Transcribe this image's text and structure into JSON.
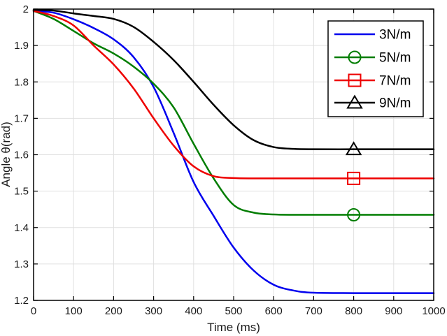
{
  "figure": {
    "background": "#ffffff",
    "grid_color": "#e0e0e0",
    "axis_color": "#000000"
  },
  "chart_data": {
    "type": "line",
    "title": "",
    "xlabel": "Time (ms)",
    "ylabel": "Angle θ(rad)",
    "xlim": [
      0,
      1000
    ],
    "ylim": [
      1.2,
      2
    ],
    "grid": true,
    "legend_position": "top-right",
    "xticks": {
      "values": [
        0,
        100,
        200,
        300,
        400,
        500,
        600,
        700,
        800,
        900,
        1000
      ],
      "labels": [
        "0",
        "100",
        "200",
        "300",
        "400",
        "500",
        "600",
        "700",
        "800",
        "900",
        "1000"
      ]
    },
    "yticks": {
      "values": [
        1.2,
        1.3,
        1.4,
        1.5,
        1.6,
        1.7,
        1.8,
        1.9,
        2
      ],
      "labels": [
        "1.2",
        "1.3",
        "1.4",
        "1.5",
        "1.6",
        "1.7",
        "1.8",
        "1.9",
        "2"
      ]
    },
    "series": [
      {
        "name": "3N/m",
        "color": "#0000ee",
        "marker": "none",
        "steady_state": 1.22,
        "x": [
          0,
          50,
          100,
          150,
          200,
          250,
          300,
          350,
          400,
          450,
          500,
          550,
          600,
          650,
          700,
          800,
          900,
          1000
        ],
        "y": [
          1.995,
          1.99,
          1.972,
          1.948,
          1.917,
          1.868,
          1.786,
          1.66,
          1.525,
          1.432,
          1.345,
          1.282,
          1.243,
          1.227,
          1.221,
          1.22,
          1.22,
          1.22
        ]
      },
      {
        "name": "5N/m",
        "color": "#007d00",
        "marker": "circle",
        "marker_point": [
          800,
          1.435
        ],
        "steady_state": 1.435,
        "x": [
          0,
          50,
          100,
          150,
          200,
          250,
          300,
          350,
          400,
          450,
          500,
          550,
          600,
          650,
          700,
          800,
          900,
          1000
        ],
        "y": [
          1.995,
          1.973,
          1.94,
          1.906,
          1.878,
          1.842,
          1.795,
          1.73,
          1.63,
          1.535,
          1.462,
          1.441,
          1.436,
          1.435,
          1.435,
          1.435,
          1.435,
          1.435
        ]
      },
      {
        "name": "7N/m",
        "color": "#ee0000",
        "marker": "square",
        "marker_point": [
          800,
          1.535
        ],
        "steady_state": 1.535,
        "x": [
          0,
          50,
          100,
          150,
          200,
          250,
          300,
          350,
          400,
          450,
          500,
          550,
          600,
          650,
          700,
          800,
          900,
          1000
        ],
        "y": [
          1.995,
          1.981,
          1.955,
          1.9,
          1.848,
          1.782,
          1.7,
          1.625,
          1.568,
          1.541,
          1.536,
          1.535,
          1.535,
          1.535,
          1.535,
          1.535,
          1.535,
          1.535
        ]
      },
      {
        "name": "9N/m",
        "color": "#000000",
        "marker": "triangle",
        "marker_point": [
          800,
          1.615
        ],
        "steady_state": 1.615,
        "x": [
          0,
          50,
          100,
          150,
          200,
          250,
          300,
          350,
          400,
          450,
          500,
          550,
          600,
          650,
          700,
          800,
          900,
          1000
        ],
        "y": [
          1.998,
          1.996,
          1.988,
          1.981,
          1.973,
          1.951,
          1.91,
          1.86,
          1.8,
          1.737,
          1.681,
          1.64,
          1.621,
          1.616,
          1.615,
          1.615,
          1.615,
          1.615
        ]
      }
    ]
  }
}
